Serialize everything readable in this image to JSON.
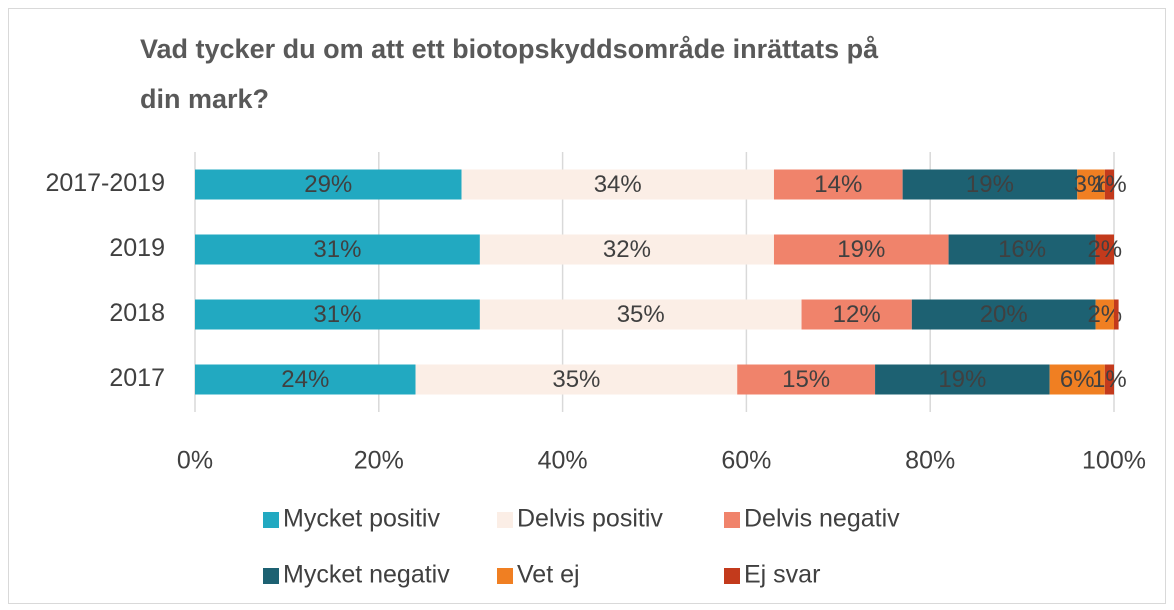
{
  "chart_data": {
    "type": "stacked_barh",
    "title": "Vad tycker du om att ett biotopskyddsområde inrättats på din mark?",
    "categories": [
      "2017-2019",
      "2019",
      "2018",
      "2017"
    ],
    "series": [
      {
        "name": "Mycket positiv",
        "color": "#22a9c1",
        "values": [
          29,
          31,
          31,
          24
        ],
        "value_labels": [
          "29%",
          "31%",
          "31%",
          "24%"
        ]
      },
      {
        "name": "Delvis positiv",
        "color": "#fbeee6",
        "values": [
          34,
          32,
          35,
          35
        ],
        "value_labels": [
          "34%",
          "32%",
          "35%",
          "35%"
        ]
      },
      {
        "name": "Delvis negativ",
        "color": "#f0836b",
        "values": [
          14,
          19,
          12,
          15
        ],
        "value_labels": [
          "14%",
          "19%",
          "12%",
          "15%"
        ]
      },
      {
        "name": "Mycket negativ",
        "color": "#1d6172",
        "values": [
          19,
          16,
          20,
          19
        ],
        "value_labels": [
          "19%",
          "16%",
          "20%",
          "19%"
        ]
      },
      {
        "name": "Vet ej",
        "color": "#f07f22",
        "values": [
          3,
          0,
          2,
          6
        ],
        "value_labels": [
          "3%",
          null,
          "2%",
          "6%"
        ]
      },
      {
        "name": "Ej svar",
        "color": "#c33a1c",
        "values": [
          1,
          2,
          0.5,
          1
        ],
        "value_labels": [
          "1%",
          "2%",
          null,
          "1%"
        ]
      }
    ],
    "xlim": [
      0,
      100
    ],
    "xticks": [
      {
        "value": 0,
        "label": "0%"
      },
      {
        "value": 20,
        "label": "20%"
      },
      {
        "value": 40,
        "label": "40%"
      },
      {
        "value": 60,
        "label": "60%"
      },
      {
        "value": 80,
        "label": "80%"
      },
      {
        "value": 100,
        "label": "100%"
      }
    ],
    "grid": true
  }
}
